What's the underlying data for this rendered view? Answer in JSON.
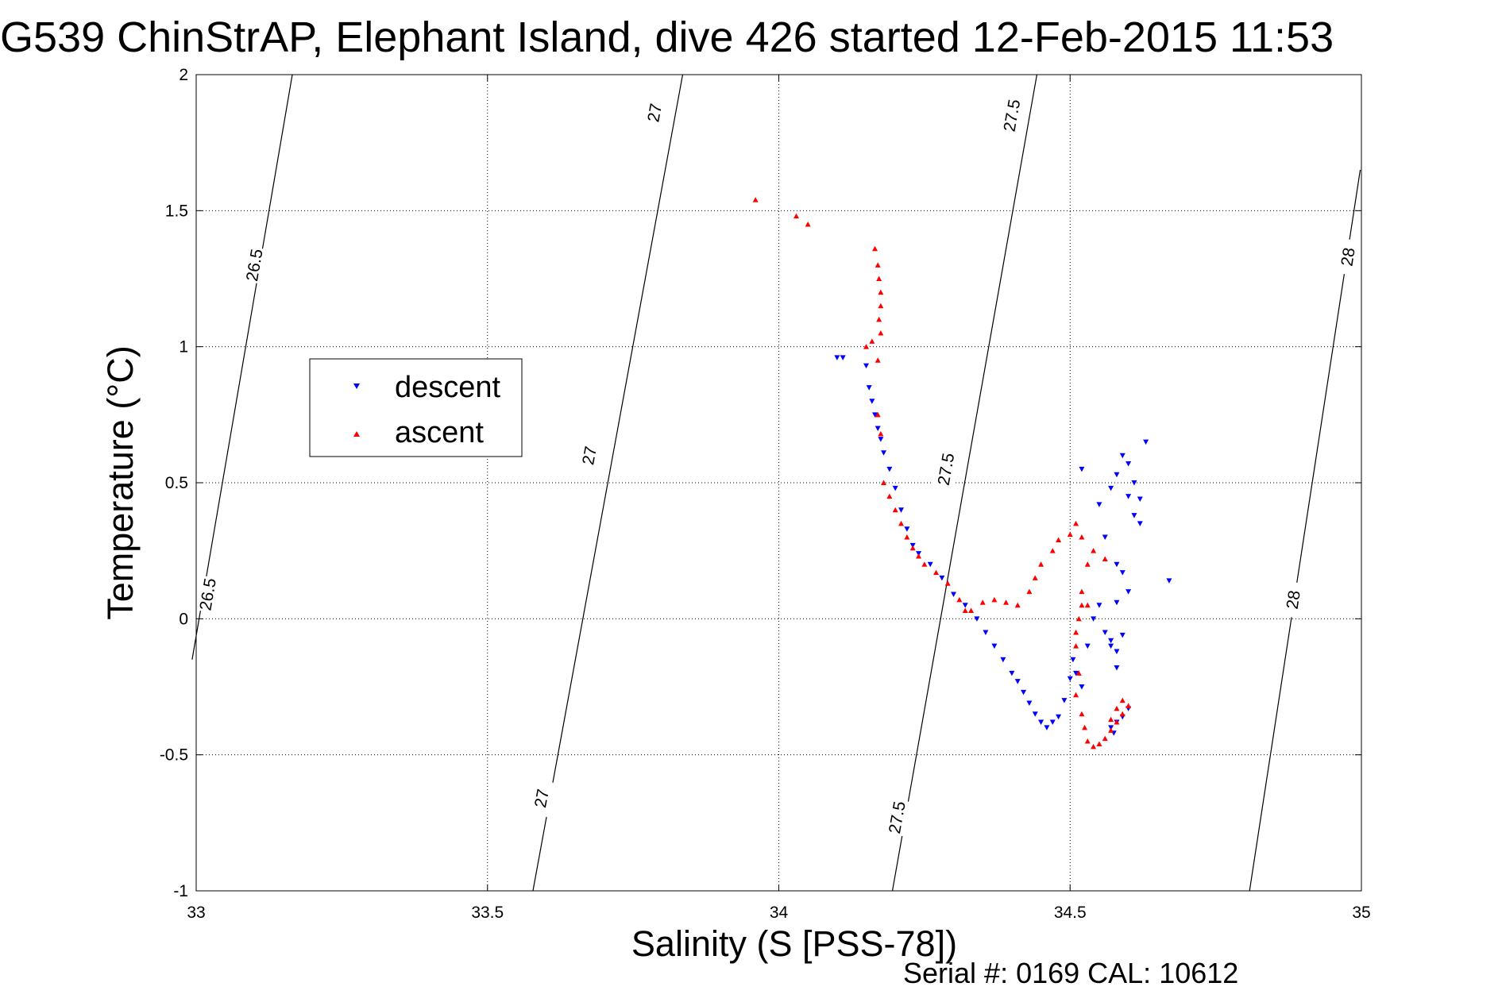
{
  "title": "G539 ChinStrAP, Elephant Island, dive 426 started 12-Feb-2015 11:53",
  "footer": "Serial #: 0169 CAL: 10612",
  "chart_data": {
    "type": "scatter",
    "xlabel": "Salinity (S [PSS-78])",
    "ylabel": "Temperature (°C)",
    "xlim": [
      33,
      35
    ],
    "ylim": [
      -1,
      2
    ],
    "xticks": [
      "33",
      "33.5",
      "34",
      "34.5",
      "35"
    ],
    "yticks": [
      "-1",
      "-0.5",
      "0",
      "0.5",
      "1",
      "1.5",
      "2"
    ],
    "grid": true,
    "legend_position": "middle-left",
    "density_contours": [
      {
        "label": "26.5",
        "points": [
          [
            32.993,
            -0.15
          ],
          [
            33.165,
            2.0
          ]
        ],
        "label_positions": [
          [
            33.1,
            1.3
          ],
          [
            33.02,
            0.09
          ]
        ]
      },
      {
        "label": "27",
        "points": [
          [
            33.578,
            -1.0
          ],
          [
            33.835,
            2.0
          ]
        ],
        "label_positions": [
          [
            33.787,
            1.86
          ],
          [
            33.675,
            0.6
          ],
          [
            33.593,
            -0.66
          ]
        ]
      },
      {
        "label": "27.5",
        "points": [
          [
            34.195,
            -1.0
          ],
          [
            34.443,
            2.0
          ]
        ],
        "label_positions": [
          [
            34.4,
            1.85
          ],
          [
            34.287,
            0.55
          ],
          [
            34.203,
            -0.73
          ]
        ]
      },
      {
        "label": "28",
        "points": [
          [
            34.808,
            -1.0
          ],
          [
            34.998,
            1.65
          ]
        ],
        "label_positions": [
          [
            34.977,
            1.33
          ],
          [
            34.883,
            0.07
          ]
        ]
      }
    ],
    "series": [
      {
        "name": "descent",
        "color": "#0000ff",
        "marker": "triangle-down",
        "points": [
          [
            34.1,
            0.96
          ],
          [
            34.11,
            0.96
          ],
          [
            34.15,
            0.93
          ],
          [
            34.155,
            0.85
          ],
          [
            34.16,
            0.8
          ],
          [
            34.165,
            0.75
          ],
          [
            34.17,
            0.7
          ],
          [
            34.175,
            0.66
          ],
          [
            34.18,
            0.61
          ],
          [
            34.19,
            0.55
          ],
          [
            34.2,
            0.48
          ],
          [
            34.21,
            0.4
          ],
          [
            34.22,
            0.33
          ],
          [
            34.23,
            0.27
          ],
          [
            34.24,
            0.24
          ],
          [
            34.26,
            0.2
          ],
          [
            34.28,
            0.15
          ],
          [
            34.3,
            0.09
          ],
          [
            34.32,
            0.05
          ],
          [
            34.34,
            0.0
          ],
          [
            34.355,
            -0.05
          ],
          [
            34.37,
            -0.1
          ],
          [
            34.385,
            -0.15
          ],
          [
            34.4,
            -0.2
          ],
          [
            34.41,
            -0.23
          ],
          [
            34.42,
            -0.27
          ],
          [
            34.43,
            -0.31
          ],
          [
            34.44,
            -0.35
          ],
          [
            34.45,
            -0.38
          ],
          [
            34.46,
            -0.4
          ],
          [
            34.47,
            -0.38
          ],
          [
            34.48,
            -0.36
          ],
          [
            34.49,
            -0.3
          ],
          [
            34.5,
            -0.22
          ],
          [
            34.505,
            -0.15
          ],
          [
            34.51,
            -0.2
          ],
          [
            34.52,
            -0.25
          ],
          [
            34.53,
            -0.1
          ],
          [
            34.54,
            0.0
          ],
          [
            34.56,
            -0.05
          ],
          [
            34.57,
            -0.08
          ],
          [
            34.58,
            -0.12
          ],
          [
            34.59,
            -0.06
          ],
          [
            34.58,
            0.06
          ],
          [
            34.57,
            -0.4
          ],
          [
            34.575,
            -0.42
          ],
          [
            34.58,
            -0.38
          ],
          [
            34.59,
            -0.36
          ],
          [
            34.6,
            -0.33
          ],
          [
            34.52,
            0.55
          ],
          [
            34.55,
            0.42
          ],
          [
            34.57,
            0.48
          ],
          [
            34.58,
            0.53
          ],
          [
            34.59,
            0.6
          ],
          [
            34.6,
            0.57
          ],
          [
            34.61,
            0.5
          ],
          [
            34.62,
            0.44
          ],
          [
            34.63,
            0.65
          ],
          [
            34.62,
            0.35
          ],
          [
            34.6,
            0.45
          ],
          [
            34.61,
            0.38
          ],
          [
            34.56,
            0.3
          ],
          [
            34.58,
            0.2
          ],
          [
            34.59,
            0.17
          ],
          [
            34.6,
            0.1
          ],
          [
            34.67,
            0.14
          ],
          [
            34.55,
            0.05
          ],
          [
            34.57,
            -0.1
          ],
          [
            34.58,
            -0.18
          ]
        ]
      },
      {
        "name": "ascent",
        "color": "#ff0000",
        "marker": "triangle-up",
        "points": [
          [
            33.96,
            1.54
          ],
          [
            34.03,
            1.48
          ],
          [
            34.05,
            1.45
          ],
          [
            34.165,
            1.36
          ],
          [
            34.17,
            1.3
          ],
          [
            34.172,
            1.25
          ],
          [
            34.175,
            1.2
          ],
          [
            34.175,
            1.15
          ],
          [
            34.172,
            1.1
          ],
          [
            34.175,
            1.05
          ],
          [
            34.16,
            1.02
          ],
          [
            34.15,
            1.0
          ],
          [
            34.17,
            0.95
          ],
          [
            34.17,
            0.75
          ],
          [
            34.175,
            0.68
          ],
          [
            34.18,
            0.5
          ],
          [
            34.19,
            0.45
          ],
          [
            34.2,
            0.4
          ],
          [
            34.21,
            0.35
          ],
          [
            34.22,
            0.3
          ],
          [
            34.23,
            0.26
          ],
          [
            34.24,
            0.23
          ],
          [
            34.25,
            0.2
          ],
          [
            34.27,
            0.17
          ],
          [
            34.29,
            0.13
          ],
          [
            34.31,
            0.07
          ],
          [
            34.32,
            0.03
          ],
          [
            34.33,
            0.03
          ],
          [
            34.35,
            0.06
          ],
          [
            34.37,
            0.07
          ],
          [
            34.39,
            0.06
          ],
          [
            34.41,
            0.05
          ],
          [
            34.43,
            0.1
          ],
          [
            34.44,
            0.15
          ],
          [
            34.45,
            0.2
          ],
          [
            34.47,
            0.25
          ],
          [
            34.48,
            0.29
          ],
          [
            34.5,
            0.31
          ],
          [
            34.51,
            0.35
          ],
          [
            34.52,
            0.3
          ],
          [
            34.53,
            0.2
          ],
          [
            34.52,
            0.05
          ],
          [
            34.515,
            0.0
          ],
          [
            34.51,
            -0.05
          ],
          [
            34.51,
            -0.1
          ],
          [
            34.515,
            -0.2
          ],
          [
            34.51,
            -0.28
          ],
          [
            34.52,
            -0.35
          ],
          [
            34.525,
            -0.4
          ],
          [
            34.53,
            -0.45
          ],
          [
            34.54,
            -0.47
          ],
          [
            34.55,
            -0.46
          ],
          [
            34.56,
            -0.44
          ],
          [
            34.57,
            -0.41
          ],
          [
            34.58,
            -0.38
          ],
          [
            34.59,
            -0.35
          ],
          [
            34.6,
            -0.32
          ],
          [
            34.59,
            -0.3
          ],
          [
            34.58,
            -0.33
          ],
          [
            34.57,
            -0.37
          ],
          [
            34.52,
            0.1
          ],
          [
            34.53,
            0.05
          ],
          [
            34.54,
            0.25
          ],
          [
            34.56,
            0.22
          ]
        ]
      }
    ]
  }
}
